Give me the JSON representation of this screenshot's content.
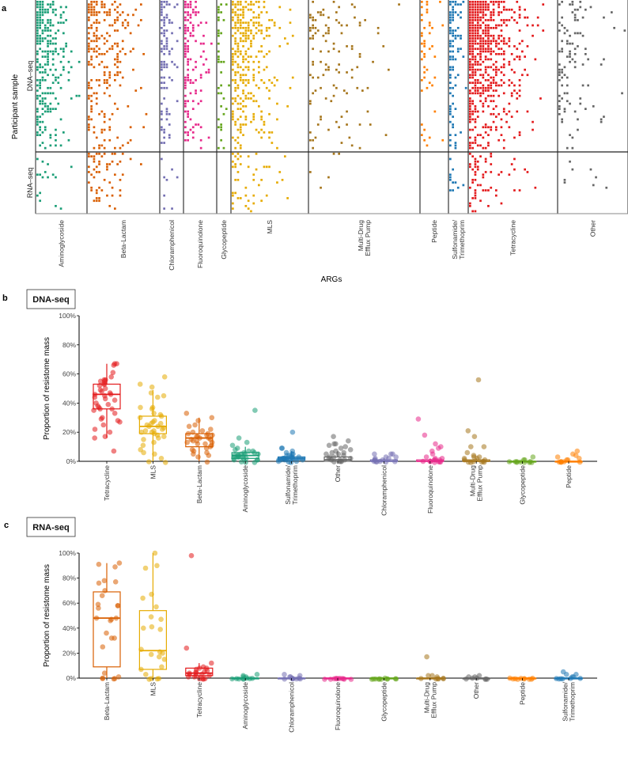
{
  "figure": {
    "panel_letters": [
      "a",
      "b",
      "c"
    ]
  },
  "chart_data": [
    {
      "id": "panel-a",
      "type": "heatmap",
      "title": "",
      "xlabel": "ARGs",
      "ylabel": "Participant sample",
      "row_facets": [
        "DNA–seq",
        "RNA–seq"
      ],
      "column_groups": [
        {
          "name": "Aminoglycoside",
          "label_lines": [
            "Aminoglycoside"
          ],
          "color": "#1b9e77",
          "density_dna": 0.35,
          "density_rna": 0.05
        },
        {
          "name": "Beta-Lactam",
          "label_lines": [
            "Beta-Lactam"
          ],
          "color": "#d95f02",
          "density_dna": 0.22,
          "density_rna": 0.18
        },
        {
          "name": "Chloramphenicol",
          "label_lines": [
            "Chloramphenicol"
          ],
          "color": "#7570b3",
          "density_dna": 0.25,
          "density_rna": 0.05
        },
        {
          "name": "Fluoroquinolone",
          "label_lines": [
            "Fluoroquinolone"
          ],
          "color": "#e7298a",
          "density_dna": 0.3,
          "density_rna": 0.0
        },
        {
          "name": "Glycopeptide",
          "label_lines": [
            "Glycopeptide"
          ],
          "color": "#66a61e",
          "density_dna": 0.18,
          "density_rna": 0.0
        },
        {
          "name": "MLS",
          "label_lines": [
            "MLS"
          ],
          "color": "#e6ab02",
          "density_dna": 0.3,
          "density_rna": 0.12
        },
        {
          "name": "Multi-Drug Efflux Pump",
          "label_lines": [
            "Multi-Drug",
            "Efflux Pump"
          ],
          "color": "#a6761d",
          "density_dna": 0.08,
          "density_rna": 0.01
        },
        {
          "name": "Peptide",
          "label_lines": [
            "Peptide"
          ],
          "color": "#ff7f00",
          "density_dna": 0.12,
          "density_rna": 0.0
        },
        {
          "name": "Sulfonamide/Trimethoprim",
          "label_lines": [
            "Sulfonamide/",
            "Trimethoprim"
          ],
          "color": "#1f78b4",
          "density_dna": 0.3,
          "density_rna": 0.06
        },
        {
          "name": "Tetracycline",
          "label_lines": [
            "Tetracycline"
          ],
          "color": "#e31a1c",
          "density_dna": 0.45,
          "density_rna": 0.14
        },
        {
          "name": "Other",
          "label_lines": [
            "Other"
          ],
          "color": "#666666",
          "density_dna": 0.12,
          "density_rna": 0.03
        }
      ],
      "value_meaning": "presence of ARG in sample (colored square = detected)"
    },
    {
      "id": "panel-b",
      "type": "box",
      "title": "DNA-seq",
      "xlabel": "",
      "ylabel": "Proportion of resistome mass",
      "ylim": [
        0,
        100
      ],
      "yticks": [
        "0%",
        "20%",
        "40%",
        "60%",
        "80%",
        "100%"
      ],
      "categories": [
        {
          "label_lines": [
            "Tetracycline"
          ],
          "color": "#e31a1c",
          "q1": 36,
          "median": 46,
          "q3": 53,
          "whisker_low": 16,
          "whisker_high": 67,
          "points": [
            67,
            67,
            66,
            61,
            58,
            56,
            56,
            55,
            55,
            53,
            53,
            52,
            50,
            49,
            48,
            47,
            46,
            46,
            45,
            44,
            43,
            42,
            40,
            39,
            38,
            37,
            36,
            36,
            35,
            33,
            30,
            29,
            28,
            27,
            25,
            22,
            20,
            17,
            16,
            7
          ]
        },
        {
          "label_lines": [
            "MLS"
          ],
          "color": "#e6ab02",
          "q1": 19,
          "median": 24,
          "q3": 31,
          "whisker_low": 0,
          "whisker_high": 49,
          "points": [
            58,
            53,
            51,
            47,
            45,
            44,
            37,
            37,
            36,
            33,
            32,
            31,
            30,
            28,
            27,
            26,
            26,
            25,
            24,
            24,
            23,
            22,
            21,
            21,
            20,
            20,
            19,
            18,
            17,
            16,
            15,
            13,
            11,
            8,
            6,
            5,
            2,
            0,
            0
          ]
        },
        {
          "label_lines": [
            "Beta-Lactam"
          ],
          "color": "#d95f02",
          "q1": 10,
          "median": 16,
          "q3": 19,
          "whisker_low": 0,
          "whisker_high": 30,
          "points": [
            33,
            30,
            28,
            25,
            24,
            22,
            21,
            20,
            19,
            19,
            18,
            18,
            17,
            17,
            16,
            16,
            15,
            15,
            14,
            14,
            13,
            13,
            12,
            12,
            11,
            10,
            9,
            8,
            7,
            6,
            5,
            4,
            3,
            0
          ]
        },
        {
          "label_lines": [
            "Aminoglycoside"
          ],
          "color": "#1b9e77",
          "q1": 2,
          "median": 4,
          "q3": 6,
          "whisker_low": 0,
          "whisker_high": 10,
          "points": [
            35,
            16,
            13,
            11,
            9,
            8,
            7,
            7,
            6,
            6,
            5,
            5,
            5,
            4,
            4,
            4,
            3,
            3,
            3,
            2,
            2,
            2,
            1,
            1,
            1,
            0,
            0,
            0
          ]
        },
        {
          "label_lines": [
            "Sulfonamide/",
            "Trimethoprim"
          ],
          "color": "#1f78b4",
          "q1": 1,
          "median": 2,
          "q3": 3,
          "whisker_low": 0,
          "whisker_high": 7,
          "points": [
            20,
            9,
            9,
            7,
            6,
            5,
            5,
            4,
            4,
            3,
            3,
            3,
            2,
            2,
            2,
            2,
            2,
            1,
            1,
            1,
            1,
            1,
            0,
            0,
            0,
            0
          ]
        },
        {
          "label_lines": [
            "Other"
          ],
          "color": "#666666",
          "q1": 0,
          "median": 1,
          "q3": 3,
          "whisker_low": 0,
          "whisker_high": 7,
          "points": [
            17,
            14,
            12,
            12,
            11,
            10,
            9,
            8,
            7,
            6,
            6,
            5,
            5,
            4,
            3,
            3,
            2,
            2,
            1,
            1,
            1,
            0,
            0,
            0,
            0
          ]
        },
        {
          "label_lines": [
            "Chloramphenicol"
          ],
          "color": "#7570b3",
          "q1": 0,
          "median": 0,
          "q3": 1,
          "whisker_low": 0,
          "whisker_high": 2,
          "points": [
            5,
            5,
            5,
            3,
            3,
            2,
            2,
            1,
            1,
            1,
            0,
            0,
            0,
            0,
            0,
            0
          ]
        },
        {
          "label_lines": [
            "Fluoroquinolone"
          ],
          "color": "#e7298a",
          "q1": 0,
          "median": 0,
          "q3": 1,
          "whisker_low": 0,
          "whisker_high": 2,
          "points": [
            29,
            18,
            12,
            10,
            9,
            7,
            5,
            3,
            2,
            2,
            1,
            1,
            1,
            0,
            0,
            0,
            0,
            0,
            0,
            0
          ]
        },
        {
          "label_lines": [
            "Multi-Drug",
            "Efflux Pump"
          ],
          "color": "#a6761d",
          "q1": 0,
          "median": 0,
          "q3": 1,
          "whisker_low": 0,
          "whisker_high": 2,
          "points": [
            56,
            21,
            17,
            10,
            10,
            6,
            4,
            3,
            3,
            2,
            2,
            1,
            1,
            0,
            0,
            0,
            0,
            0,
            0
          ]
        },
        {
          "label_lines": [
            "Glycopeptide"
          ],
          "color": "#66a61e",
          "q1": 0,
          "median": 0,
          "q3": 0,
          "whisker_low": 0,
          "whisker_high": 0,
          "points": [
            3,
            1,
            1,
            0,
            0,
            0,
            0,
            0,
            0,
            0,
            0,
            0
          ]
        },
        {
          "label_lines": [
            "Peptide"
          ],
          "color": "#ff7f00",
          "q1": 0,
          "median": 0,
          "q3": 0,
          "whisker_low": 0,
          "whisker_high": 1,
          "points": [
            7,
            5,
            4,
            3,
            2,
            1,
            1,
            0,
            0,
            0,
            0,
            0,
            0
          ]
        }
      ]
    },
    {
      "id": "panel-c",
      "type": "box",
      "title": "RNA-seq",
      "xlabel": "",
      "ylabel": "Proportion of resistome mass",
      "ylim": [
        0,
        100
      ],
      "yticks": [
        "0%",
        "20%",
        "40%",
        "60%",
        "80%",
        "100%"
      ],
      "categories": [
        {
          "label_lines": [
            "Beta-Lactam"
          ],
          "color": "#d95f02",
          "q1": 9,
          "median": 48,
          "q3": 69,
          "whisker_low": 0,
          "whisker_high": 92,
          "points": [
            92,
            91,
            89,
            78,
            77,
            76,
            70,
            66,
            59,
            58,
            58,
            56,
            48,
            48,
            47,
            46,
            36,
            32,
            32,
            25,
            4,
            1,
            0,
            0,
            0,
            0
          ]
        },
        {
          "label_lines": [
            "MLS"
          ],
          "color": "#e6ab02",
          "q1": 7,
          "median": 22,
          "q3": 54,
          "whisker_low": 0,
          "whisker_high": 100,
          "points": [
            100,
            90,
            88,
            67,
            64,
            57,
            49,
            47,
            41,
            40,
            39,
            23,
            21,
            20,
            19,
            17,
            15,
            9,
            7,
            3,
            0,
            0,
            0,
            0
          ]
        },
        {
          "label_lines": [
            "Tetracycline"
          ],
          "color": "#e31a1c",
          "q1": 2,
          "median": 4,
          "q3": 8,
          "whisker_low": 0,
          "whisker_high": 12,
          "points": [
            98,
            24,
            12,
            9,
            8,
            8,
            7,
            6,
            5,
            5,
            4,
            4,
            3,
            3,
            2,
            2,
            1,
            1,
            0,
            0,
            0,
            0
          ]
        },
        {
          "label_lines": [
            "Aminoglycoside"
          ],
          "color": "#1b9e77",
          "q1": 0,
          "median": 0,
          "q3": 0,
          "whisker_low": 0,
          "whisker_high": 0,
          "points": [
            3,
            2,
            1,
            1,
            0,
            0,
            0,
            0,
            0,
            0,
            0,
            0
          ]
        },
        {
          "label_lines": [
            "Chloramphenicol"
          ],
          "color": "#7570b3",
          "q1": 0,
          "median": 0,
          "q3": 0,
          "whisker_low": 0,
          "whisker_high": 0,
          "points": [
            3,
            2,
            1,
            1,
            0,
            0,
            0,
            0,
            0,
            0,
            0
          ]
        },
        {
          "label_lines": [
            "Fluoroquinolone"
          ],
          "color": "#e7298a",
          "q1": 0,
          "median": 0,
          "q3": 0,
          "whisker_low": 0,
          "whisker_high": 0,
          "points": [
            0,
            0,
            0,
            0,
            0,
            0,
            0,
            0,
            0,
            0,
            0
          ]
        },
        {
          "label_lines": [
            "Glycopeptide"
          ],
          "color": "#66a61e",
          "q1": 0,
          "median": 0,
          "q3": 0,
          "whisker_low": 0,
          "whisker_high": 0,
          "points": [
            0,
            0,
            0,
            0,
            0,
            0,
            0,
            0,
            0,
            0,
            0
          ]
        },
        {
          "label_lines": [
            "Multi-Drug",
            "Efflux Pump"
          ],
          "color": "#a6761d",
          "q1": 0,
          "median": 0,
          "q3": 0,
          "whisker_low": 0,
          "whisker_high": 0,
          "points": [
            17,
            2,
            2,
            1,
            0,
            0,
            0,
            0,
            0,
            0
          ]
        },
        {
          "label_lines": [
            "Other"
          ],
          "color": "#666666",
          "q1": 0,
          "median": 0,
          "q3": 0,
          "whisker_low": 0,
          "whisker_high": 0,
          "points": [
            2,
            1,
            1,
            0,
            0,
            0,
            0,
            0,
            0
          ]
        },
        {
          "label_lines": [
            "Peptide"
          ],
          "color": "#ff7f00",
          "q1": 0,
          "median": 0,
          "q3": 0,
          "whisker_low": 0,
          "whisker_high": 0,
          "points": [
            0,
            0,
            0,
            0,
            0,
            0,
            0,
            0,
            0,
            0
          ]
        },
        {
          "label_lines": [
            "Sulfonamide/",
            "Trimethoprim"
          ],
          "color": "#1f78b4",
          "q1": 0,
          "median": 0,
          "q3": 0,
          "whisker_low": 0,
          "whisker_high": 0,
          "points": [
            5,
            3,
            3,
            1,
            1,
            0,
            0,
            0,
            0,
            0,
            0
          ]
        }
      ]
    }
  ]
}
